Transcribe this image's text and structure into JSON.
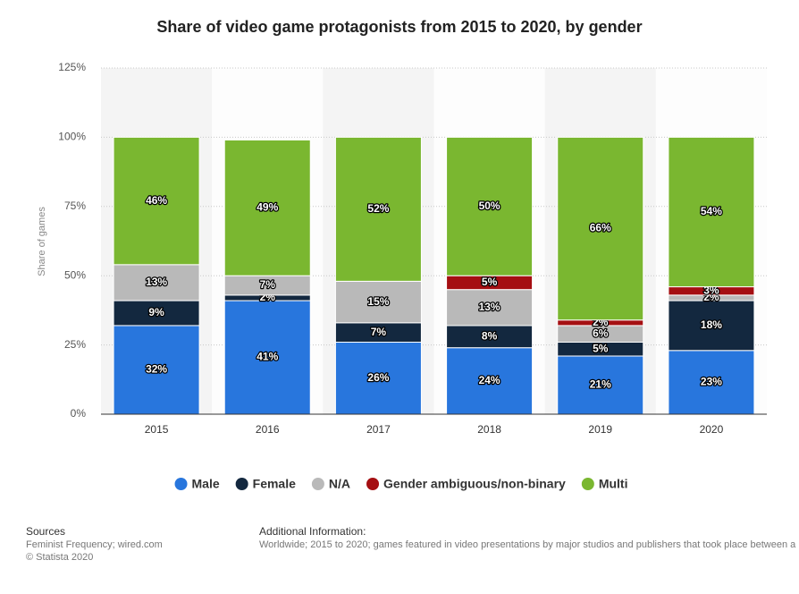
{
  "chart_data": {
    "type": "stacked_bar",
    "title": "Share of video game protagonists from 2015 to 2020, by gender",
    "y_label": "Share of games",
    "categories": [
      "2015",
      "2016",
      "2017",
      "2018",
      "2019",
      "2020"
    ],
    "series": [
      {
        "name": "Male",
        "color": "#2876dd",
        "values": [
          32,
          41,
          26,
          24,
          21,
          23
        ],
        "value_labels": [
          "32%",
          "41%",
          "26%",
          "24%",
          "21%",
          "23%"
        ]
      },
      {
        "name": "Female",
        "color": "#13283f",
        "values": [
          9,
          2,
          7,
          8,
          5,
          18
        ],
        "value_labels": [
          "9%",
          "2%",
          "7%",
          "8%",
          "5%",
          "18%"
        ]
      },
      {
        "name": "N/A",
        "color": "#b9b9b9",
        "values": [
          13,
          7,
          15,
          13,
          6,
          2
        ],
        "value_labels": [
          "13%",
          "7%",
          "15%",
          "13%",
          "6%",
          "2%"
        ]
      },
      {
        "name": "Gender ambiguous/non-binary",
        "color": "#a50f12",
        "values": [
          null,
          null,
          null,
          5,
          2,
          3
        ],
        "value_labels": [
          null,
          null,
          null,
          "5%",
          "2%",
          "3%"
        ]
      },
      {
        "name": "Multi",
        "color": "#7ab730",
        "values": [
          46,
          49,
          52,
          50,
          66,
          54
        ],
        "value_labels": [
          "46%",
          "49%",
          "52%",
          "50%",
          "66%",
          "54%"
        ]
      }
    ],
    "ylim": [
      0,
      125
    ],
    "yticks": [
      {
        "value": 0,
        "label": "0%"
      },
      {
        "value": 25,
        "label": "25%"
      },
      {
        "value": 50,
        "label": "50%"
      },
      {
        "value": 75,
        "label": "75%"
      },
      {
        "value": 100,
        "label": "100%"
      },
      {
        "value": 125,
        "label": "125%"
      }
    ],
    "grid": true,
    "legend": "bottom"
  },
  "footer": {
    "sources_title": "Sources",
    "sources": [
      "Feminist Frequency; wired.com",
      "© Statista 2020"
    ],
    "info_title": "Additional Information:",
    "info": "Worldwide; 2015 to 2020; games featured in video presentations by major studios and publishers that took place between a"
  }
}
